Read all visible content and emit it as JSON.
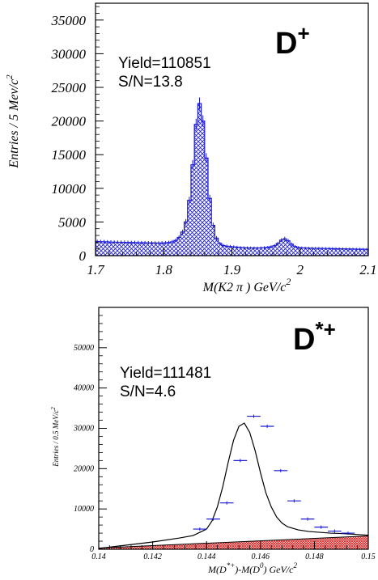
{
  "chart_data": [
    {
      "type": "histogram",
      "particle_label": "D",
      "particle_charge": "+",
      "annotations": [
        "Yield=110851",
        "S/N=13.8"
      ],
      "xlabel_parts": [
        "M(K2 ",
        "π",
        " )   GeV/c",
        "2"
      ],
      "ylabel_parts": [
        "Entries / 5 Mev/c",
        "2"
      ],
      "xlim": [
        1.7,
        2.1
      ],
      "ylim": [
        0,
        37500
      ],
      "x_ticks": [
        "1.7",
        "1.8",
        "1.9",
        "2",
        "2.1"
      ],
      "y_ticks": [
        "0",
        "5000",
        "10000",
        "15000",
        "20000",
        "25000",
        "30000",
        "35000"
      ],
      "colors": {
        "data": "#1a1ad6",
        "fill": "#1a1ad6"
      },
      "series": [
        {
          "x": [
            1.7025,
            1.7075,
            1.7125,
            1.7175,
            1.7225,
            1.7275,
            1.7325,
            1.7375,
            1.7425,
            1.7475,
            1.7525,
            1.7575,
            1.7625,
            1.7675,
            1.7725,
            1.7775,
            1.7825,
            1.7875,
            1.7925,
            1.7975,
            1.8025,
            1.8075,
            1.8125,
            1.8175,
            1.8225,
            1.8275,
            1.8325,
            1.8375,
            1.8425,
            1.8475,
            1.8525,
            1.8575,
            1.8625,
            1.8675,
            1.8725,
            1.8775,
            1.8825,
            1.8875,
            1.8925,
            1.8975,
            1.9025,
            1.9075,
            1.9125,
            1.9175,
            1.9225,
            1.9275,
            1.9325,
            1.9375,
            1.9425,
            1.9475,
            1.9525,
            1.9575,
            1.9625,
            1.9675,
            1.9725,
            1.9775,
            1.9825,
            1.9875,
            1.9925,
            1.9975,
            2.0025,
            2.0075,
            2.0125,
            2.0175,
            2.0225,
            2.0275,
            2.0325,
            2.0375,
            2.0425,
            2.0475,
            2.0525,
            2.0575,
            2.0625,
            2.0675,
            2.0725,
            2.0775,
            2.0825,
            2.0875,
            2.0925,
            2.0975
          ],
          "values": [
            2100,
            2080,
            2060,
            2040,
            2020,
            2000,
            1990,
            1980,
            1970,
            1960,
            1950,
            1940,
            1930,
            1920,
            1910,
            1900,
            1890,
            1880,
            1870,
            1880,
            1900,
            1950,
            2050,
            2250,
            2700,
            3500,
            5000,
            8200,
            13500,
            19500,
            22600,
            20000,
            14500,
            8500,
            4500,
            2600,
            1800,
            1500,
            1400,
            1350,
            1300,
            1250,
            1200,
            1180,
            1160,
            1150,
            1140,
            1130,
            1150,
            1180,
            1230,
            1320,
            1480,
            1800,
            2300,
            2500,
            2200,
            1700,
            1350,
            1200,
            1150,
            1130,
            1110,
            1100,
            1090,
            1080,
            1070,
            1060,
            1050,
            1040,
            1030,
            1020,
            1010,
            1000,
            990,
            980,
            970,
            960,
            950,
            940
          ]
        }
      ]
    },
    {
      "type": "scatter",
      "particle_label": "D",
      "particle_charge": "*+",
      "annotations": [
        "Yield=111481",
        "S/N=4.6"
      ],
      "xlabel_parts": [
        "M(D",
        "*+",
        ")-M(D",
        "0",
        ")  GeV/c",
        "2"
      ],
      "ylabel_parts": [
        "Entries / 0.5 MeV/c",
        "2"
      ],
      "xlim": [
        0.14,
        0.15
      ],
      "ylim": [
        0,
        60000
      ],
      "x_ticks": [
        "0.14",
        "0.142",
        "0.144",
        "0.146",
        "0.148",
        "0.15"
      ],
      "y_ticks": [
        "0",
        "10000",
        "20000",
        "30000",
        "40000",
        "50000"
      ],
      "colors": {
        "data": "#1a1ad6",
        "fit": "#000000",
        "background": "#e02020"
      },
      "series": [
        {
          "name": "data",
          "x": [
            0.14375,
            0.14425,
            0.14475,
            0.14525,
            0.14575,
            0.14625,
            0.14675,
            0.14725,
            0.14775,
            0.14825,
            0.14875,
            0.14925
          ],
          "values": [
            5000,
            7500,
            11500,
            22000,
            33000,
            30500,
            19500,
            12000,
            7500,
            5500,
            4500,
            4000
          ]
        },
        {
          "name": "fit",
          "x": [
            0.14,
            0.141,
            0.142,
            0.143,
            0.1435,
            0.144,
            0.1442,
            0.1444,
            0.1446,
            0.1448,
            0.145,
            0.1452,
            0.1454,
            0.1456,
            0.1458,
            0.146,
            0.1462,
            0.1464,
            0.1466,
            0.1468,
            0.147,
            0.1474,
            0.1478,
            0.1482,
            0.1486,
            0.149,
            0.1495,
            0.15
          ],
          "values": [
            200,
            1000,
            1800,
            2800,
            3400,
            5000,
            7000,
            10500,
            15500,
            21500,
            27000,
            30500,
            31300,
            29000,
            24500,
            19000,
            14000,
            10500,
            8000,
            6500,
            5600,
            4800,
            4400,
            4200,
            4000,
            3900,
            3700,
            3500
          ]
        },
        {
          "name": "background",
          "x": [
            0.14,
            0.15
          ],
          "values": [
            300,
            3300
          ]
        }
      ]
    }
  ]
}
